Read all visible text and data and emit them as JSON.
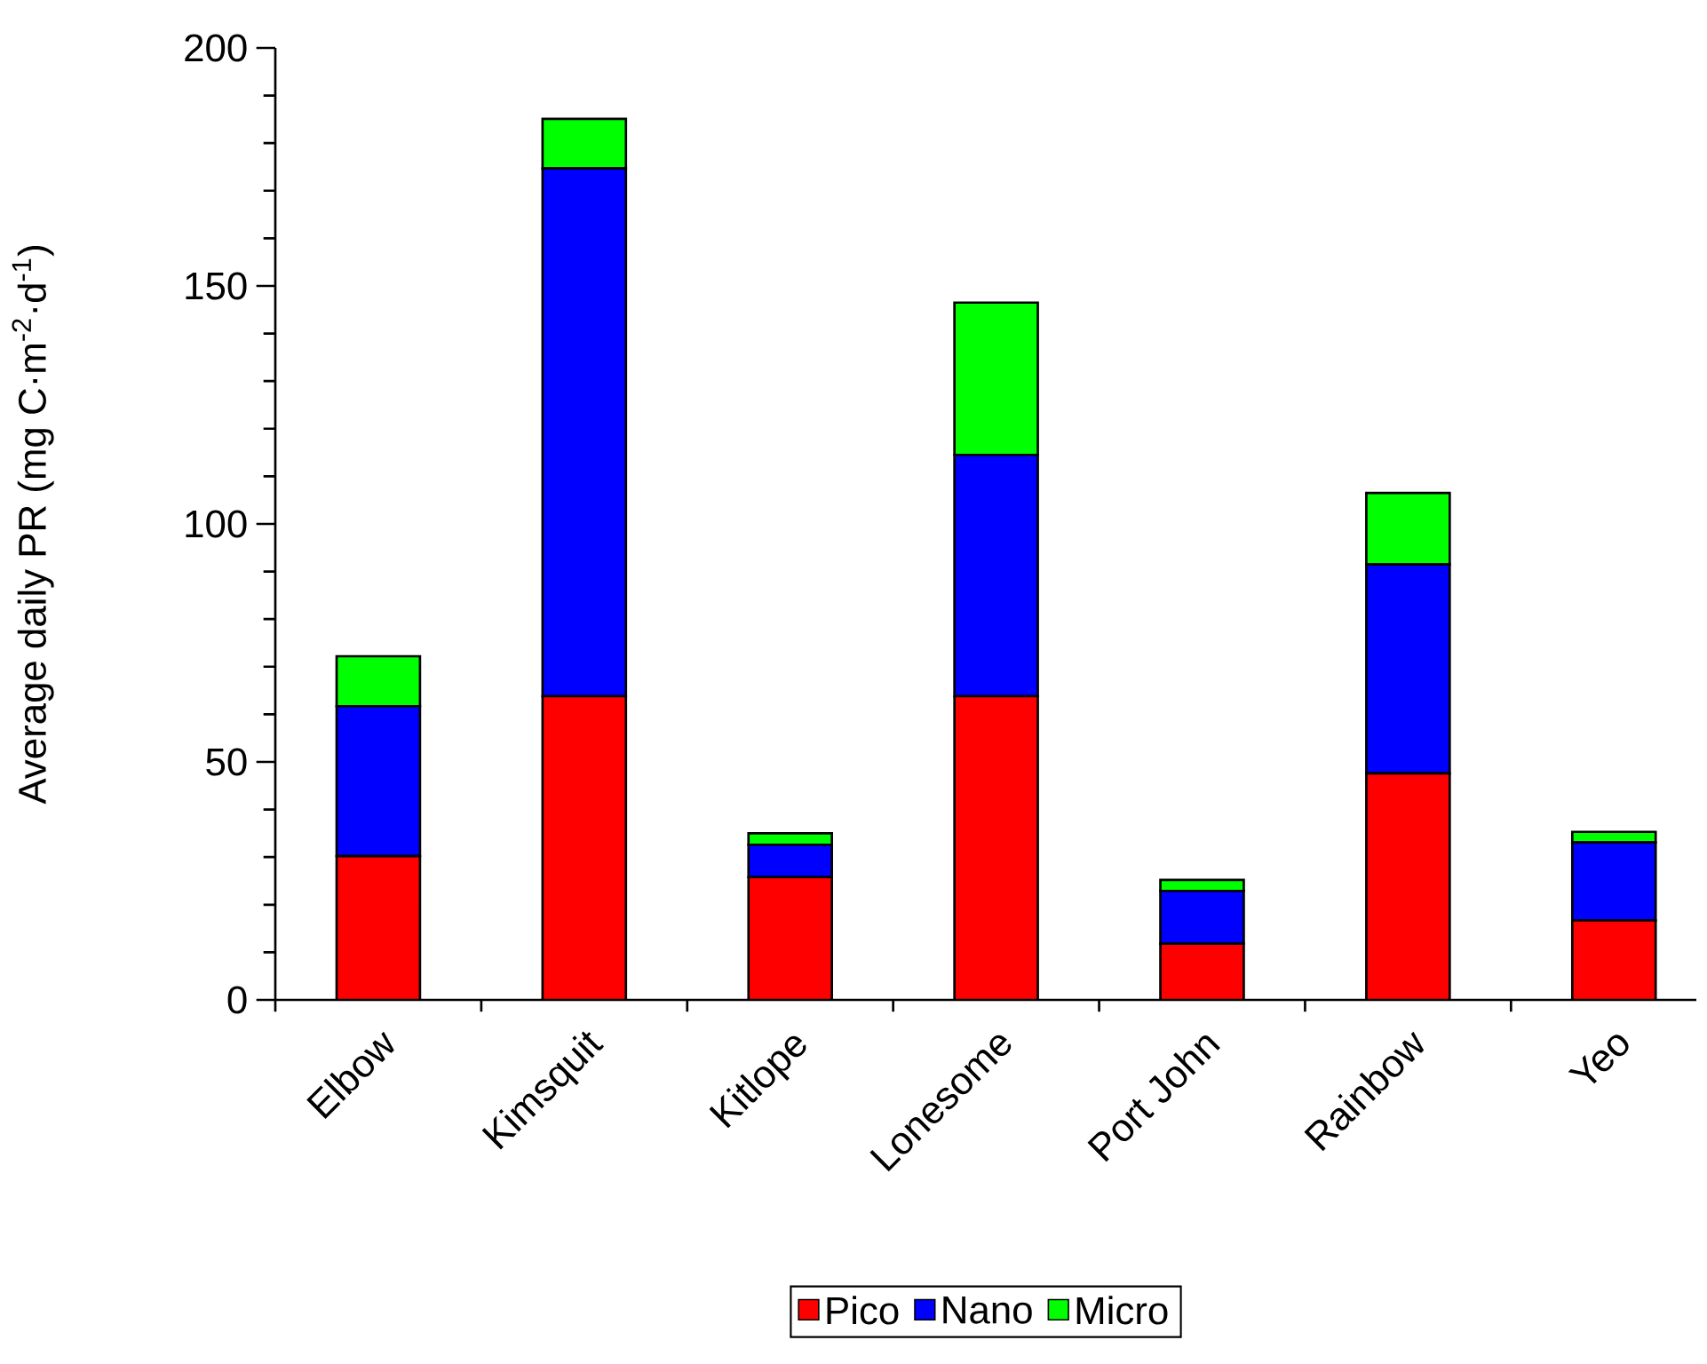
{
  "chart_data": {
    "type": "bar",
    "stacked": true,
    "ylabel": "Average daily PR (mg C·m$^{-2}$·d$^{-1}$)",
    "categories": [
      "Elbow",
      "Kimsquit",
      "Kitlope",
      "Lonesome",
      "Port John",
      "Rainbow",
      "Yeo"
    ],
    "series": [
      {
        "name": "Pico",
        "color": "#ff0000",
        "values": [
          30.2,
          63.8,
          25.8,
          63.8,
          11.8,
          47.6,
          16.7
        ]
      },
      {
        "name": "Nano",
        "color": "#0000ff",
        "values": [
          31.5,
          110.9,
          6.8,
          50.7,
          11.1,
          43.9,
          16.4
        ]
      },
      {
        "name": "Micro",
        "color": "#00ff00",
        "values": [
          10.5,
          10.4,
          2.4,
          32.0,
          2.3,
          15.0,
          2.2
        ]
      }
    ],
    "ylim": [
      0,
      200
    ],
    "yticks": [
      0,
      50,
      100,
      150,
      200
    ],
    "grid": false,
    "legend": "bottom"
  }
}
